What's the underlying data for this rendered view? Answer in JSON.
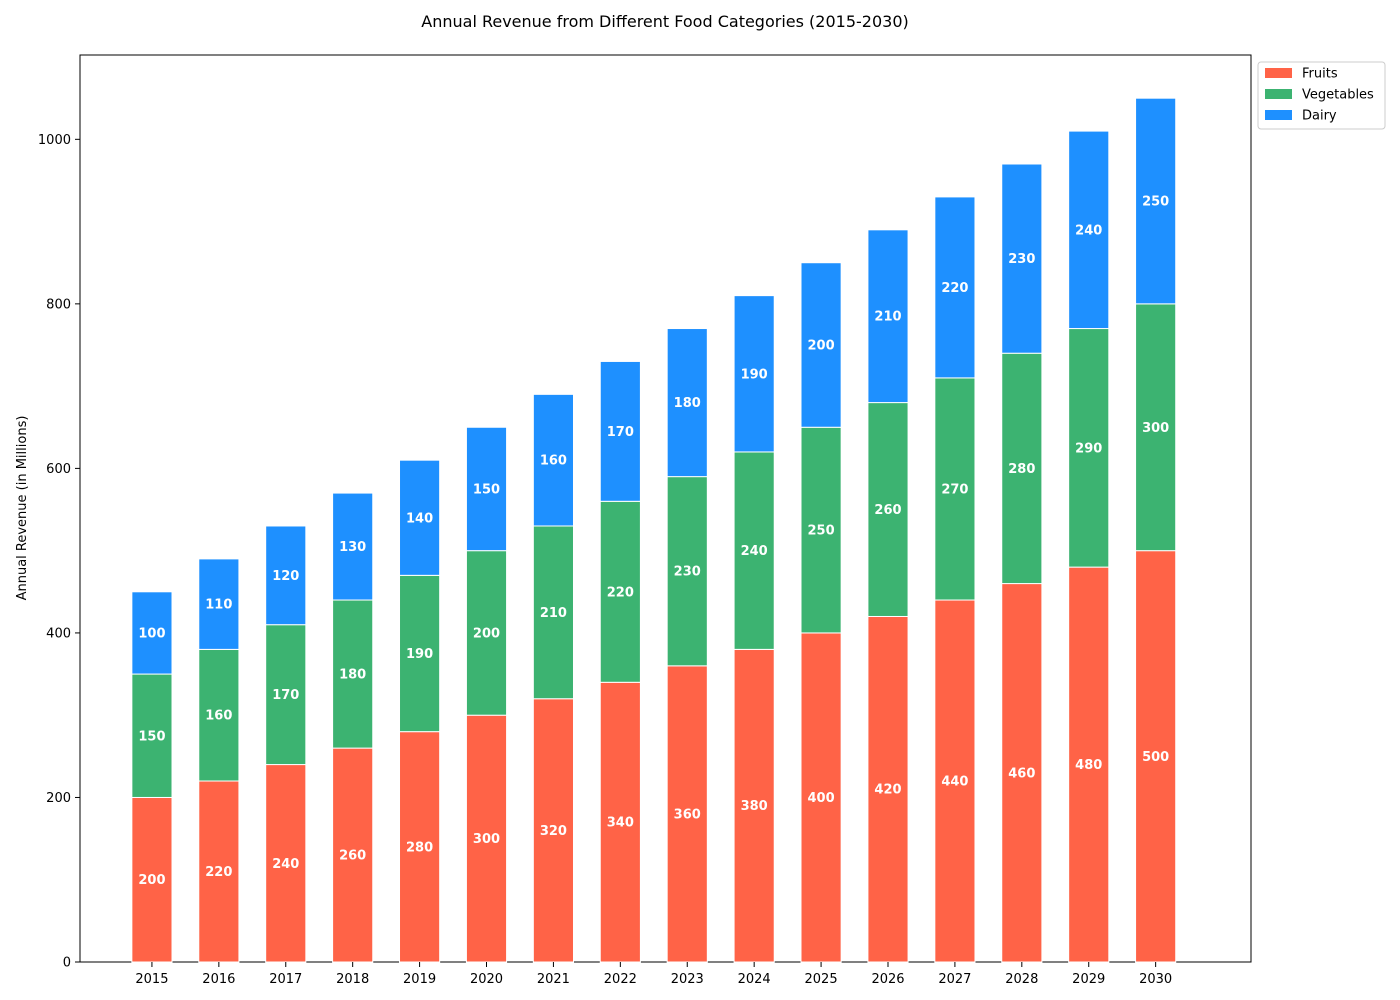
{
  "chart_data": {
    "type": "bar",
    "stacked": true,
    "title": "Annual Revenue from Different Food Categories (2015-2030)",
    "xlabel": "",
    "ylabel": "Annual Revenue (in Millions)",
    "categories": [
      "2015",
      "2016",
      "2017",
      "2018",
      "2019",
      "2020",
      "2021",
      "2022",
      "2023",
      "2024",
      "2025",
      "2026",
      "2027",
      "2028",
      "2029",
      "2030"
    ],
    "series": [
      {
        "name": "Fruits",
        "color": "#ff6347",
        "values": [
          200,
          220,
          240,
          260,
          280,
          300,
          320,
          340,
          360,
          380,
          400,
          420,
          440,
          460,
          480,
          500
        ]
      },
      {
        "name": "Vegetables",
        "color": "#3cb371",
        "values": [
          150,
          160,
          170,
          180,
          190,
          200,
          210,
          220,
          230,
          240,
          250,
          260,
          270,
          280,
          290,
          300
        ]
      },
      {
        "name": "Dairy",
        "color": "#1e90ff",
        "values": [
          100,
          110,
          120,
          130,
          140,
          150,
          160,
          170,
          180,
          190,
          200,
          210,
          220,
          230,
          240,
          250
        ]
      }
    ],
    "ylim": [
      0,
      1102.5
    ],
    "yticks": [
      0,
      200,
      400,
      600,
      800,
      1000
    ],
    "grid": false,
    "legend_position": "upper-right-outside",
    "data_labels": true
  }
}
